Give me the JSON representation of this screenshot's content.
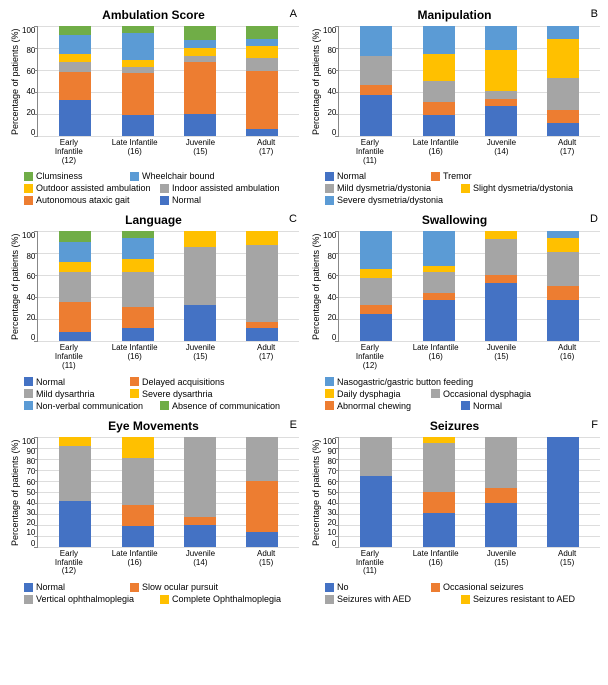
{
  "colors": {
    "blue": "#4472c4",
    "orange": "#ed7d31",
    "grey": "#a5a5a5",
    "yellow": "#ffc000",
    "lightblue": "#5b9bd5",
    "green": "#70ad47"
  },
  "ylabel": "Percentage of patients (%)",
  "panels": [
    {
      "letter": "A",
      "title": "Ambulation Score",
      "yticks": [
        0,
        20,
        40,
        60,
        80,
        100
      ],
      "categories": [
        "Early Infantile (12)",
        "Late Infantile (16)",
        "Juvenile (15)",
        "Adult (17)"
      ],
      "series": [
        {
          "label": "Clumsiness",
          "color": "green",
          "leg_w": "narrow"
        },
        {
          "label": "Wheelchair bound",
          "color": "lightblue"
        },
        {
          "label": "Outdoor assisted ambulation",
          "color": "yellow"
        },
        {
          "label": "Indoor assisted ambulation",
          "color": "grey"
        },
        {
          "label": "Autonomous ataxic gait",
          "color": "orange"
        },
        {
          "label": "Normal",
          "color": "blue",
          "leg_w": "narrow"
        }
      ],
      "stack_order": [
        "blue",
        "orange",
        "grey",
        "yellow",
        "lightblue",
        "green"
      ],
      "data": [
        {
          "blue": 33,
          "orange": 25,
          "grey": 9,
          "yellow": 8,
          "lightblue": 17,
          "green": 8
        },
        {
          "blue": 19,
          "orange": 38,
          "grey": 6,
          "yellow": 6,
          "lightblue": 25,
          "green": 6
        },
        {
          "blue": 20,
          "orange": 47,
          "grey": 6,
          "yellow": 7,
          "lightblue": 7,
          "green": 13
        },
        {
          "blue": 6,
          "orange": 53,
          "grey": 12,
          "yellow": 11,
          "lightblue": 6,
          "green": 12
        }
      ]
    },
    {
      "letter": "B",
      "title": "Manipulation",
      "yticks": [
        0,
        20,
        40,
        60,
        80,
        100
      ],
      "categories": [
        "Early Infantile (11)",
        "Late Infantile (16)",
        "Juvenile (14)",
        "Adult (17)"
      ],
      "series": [
        {
          "label": "Normal",
          "color": "blue",
          "leg_w": "narrow"
        },
        {
          "label": "Tremor",
          "color": "orange",
          "leg_w": "narrow"
        },
        {
          "label": "Mild dysmetria/dystonia",
          "color": "grey"
        },
        {
          "label": "Slight dysmetria/dystonia",
          "color": "yellow"
        },
        {
          "label": "Severe dysmetria/dystonia",
          "color": "lightblue"
        }
      ],
      "stack_order": [
        "blue",
        "orange",
        "grey",
        "yellow",
        "lightblue"
      ],
      "data": [
        {
          "blue": 37,
          "orange": 9,
          "grey": 27,
          "yellow": 0,
          "lightblue": 27
        },
        {
          "blue": 19,
          "orange": 12,
          "grey": 19,
          "yellow": 25,
          "lightblue": 25
        },
        {
          "blue": 27,
          "orange": 7,
          "grey": 7,
          "yellow": 37,
          "lightblue": 22
        },
        {
          "blue": 12,
          "orange": 12,
          "grey": 29,
          "yellow": 35,
          "lightblue": 12
        }
      ]
    },
    {
      "letter": "C",
      "title": "Language",
      "yticks": [
        0,
        20,
        40,
        60,
        80,
        100
      ],
      "categories": [
        "Early Infantile (11)",
        "Late Infantile (16)",
        "Juvenile (15)",
        "Adult (17)"
      ],
      "series": [
        {
          "label": "Normal",
          "color": "blue",
          "leg_w": "narrow"
        },
        {
          "label": "Delayed acquisitions",
          "color": "orange"
        },
        {
          "label": "Mild dysarthria",
          "color": "grey",
          "leg_w": "narrow"
        },
        {
          "label": "Severe dysarthria",
          "color": "yellow"
        },
        {
          "label": "Non-verbal communication",
          "color": "lightblue"
        },
        {
          "label": "Absence of communication",
          "color": "green"
        }
      ],
      "stack_order": [
        "blue",
        "orange",
        "grey",
        "yellow",
        "lightblue",
        "green"
      ],
      "data": [
        {
          "blue": 9,
          "orange": 27,
          "grey": 27,
          "yellow": 9,
          "lightblue": 18,
          "green": 10
        },
        {
          "blue": 12,
          "orange": 19,
          "grey": 32,
          "yellow": 12,
          "lightblue": 19,
          "green": 6
        },
        {
          "blue": 33,
          "orange": 0,
          "grey": 53,
          "yellow": 14,
          "lightblue": 0,
          "green": 0
        },
        {
          "blue": 12,
          "orange": 6,
          "grey": 70,
          "yellow": 12,
          "lightblue": 0,
          "green": 0
        }
      ]
    },
    {
      "letter": "D",
      "title": "Swallowing",
      "yticks": [
        0,
        20,
        40,
        60,
        80,
        100
      ],
      "categories": [
        "Early Infantile (12)",
        "Late Infantile (16)",
        "Juvenile (15)",
        "Adult (16)"
      ],
      "series": [
        {
          "label": "Nasogastric/gastric button feeding",
          "color": "lightblue",
          "leg_w": "wide"
        },
        {
          "label": "Daily dysphagia",
          "color": "yellow",
          "leg_w": "narrow"
        },
        {
          "label": "Occasional dysphagia",
          "color": "grey"
        },
        {
          "label": "Abnormal chewing",
          "color": "orange"
        },
        {
          "label": "Normal",
          "color": "blue",
          "leg_w": "narrow"
        }
      ],
      "stack_order": [
        "blue",
        "orange",
        "grey",
        "yellow",
        "lightblue"
      ],
      "data": [
        {
          "blue": 25,
          "orange": 8,
          "grey": 25,
          "yellow": 8,
          "lightblue": 34
        },
        {
          "blue": 38,
          "orange": 6,
          "grey": 19,
          "yellow": 6,
          "lightblue": 31
        },
        {
          "blue": 53,
          "orange": 7,
          "grey": 33,
          "yellow": 7,
          "lightblue": 0
        },
        {
          "blue": 38,
          "orange": 12,
          "grey": 31,
          "yellow": 13,
          "lightblue": 6
        }
      ]
    },
    {
      "letter": "E",
      "title": "Eye Movements",
      "yticks": [
        0,
        10,
        20,
        30,
        40,
        50,
        60,
        70,
        80,
        90,
        100
      ],
      "categories": [
        "Early Infantile (12)",
        "Late Infantile (16)",
        "Juvenile (14)",
        "Adult (15)"
      ],
      "series": [
        {
          "label": "Normal",
          "color": "blue",
          "leg_w": "narrow"
        },
        {
          "label": "Slow ocular pursuit",
          "color": "orange"
        },
        {
          "label": "Vertical ophthalmoplegia",
          "color": "grey"
        },
        {
          "label": "Complete Ophthalmoplegia",
          "color": "yellow"
        }
      ],
      "stack_order": [
        "blue",
        "orange",
        "grey",
        "yellow"
      ],
      "data": [
        {
          "blue": 42,
          "orange": 0,
          "grey": 50,
          "yellow": 8
        },
        {
          "blue": 19,
          "orange": 19,
          "grey": 43,
          "yellow": 19
        },
        {
          "blue": 20,
          "orange": 7,
          "grey": 73,
          "yellow": 0
        },
        {
          "blue": 13,
          "orange": 47,
          "grey": 40,
          "yellow": 0
        }
      ]
    },
    {
      "letter": "F",
      "title": "Seizures",
      "yticks": [
        0,
        10,
        20,
        30,
        40,
        50,
        60,
        70,
        80,
        90,
        100
      ],
      "categories": [
        "Early Infantile (11)",
        "Late Infantile (16)",
        "Juvenile (15)",
        "Adult (15)"
      ],
      "series": [
        {
          "label": "No",
          "color": "blue",
          "leg_w": "narrow"
        },
        {
          "label": "Occasional seizures",
          "color": "orange"
        },
        {
          "label": "Seizures with AED",
          "color": "grey"
        },
        {
          "label": "Seizures resistant to AED",
          "color": "yellow"
        }
      ],
      "stack_order": [
        "blue",
        "orange",
        "grey",
        "yellow"
      ],
      "data": [
        {
          "blue": 64,
          "orange": 0,
          "grey": 36,
          "yellow": 0
        },
        {
          "blue": 31,
          "orange": 19,
          "grey": 44,
          "yellow": 6
        },
        {
          "blue": 40,
          "orange": 13,
          "grey": 47,
          "yellow": 0
        },
        {
          "blue": 100,
          "orange": 0,
          "grey": 0,
          "yellow": 0
        }
      ]
    }
  ]
}
